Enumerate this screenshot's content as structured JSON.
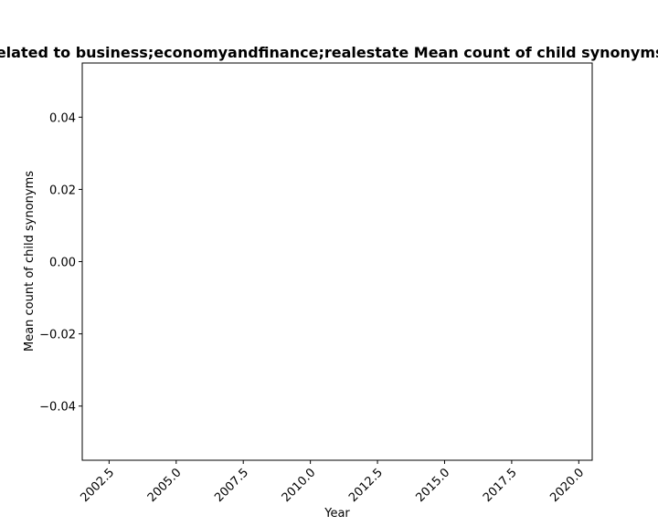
{
  "chart_data": {
    "type": "line",
    "title": "Related to business;economyandfinance;realestate Mean count of child synonyms",
    "xlabel": "Year",
    "ylabel": "Mean count of child synonyms",
    "xlim": [
      2001.5,
      2020.5
    ],
    "ylim": [
      -0.055,
      0.055
    ],
    "x_ticks": [
      2002.5,
      2005.0,
      2007.5,
      2010.0,
      2012.5,
      2015.0,
      2017.5,
      2020.0
    ],
    "x_tick_labels": [
      "2002.5",
      "2005.0",
      "2007.5",
      "2010.0",
      "2012.5",
      "2015.0",
      "2017.5",
      "2020.0"
    ],
    "y_ticks": [
      0.04,
      0.02,
      0.0,
      -0.02,
      -0.04
    ],
    "y_tick_labels": [
      "0.04",
      "0.02",
      "0.00",
      "−0.02",
      "−0.04"
    ],
    "x_tick_rotation_deg": 45,
    "grid": false,
    "series": []
  }
}
